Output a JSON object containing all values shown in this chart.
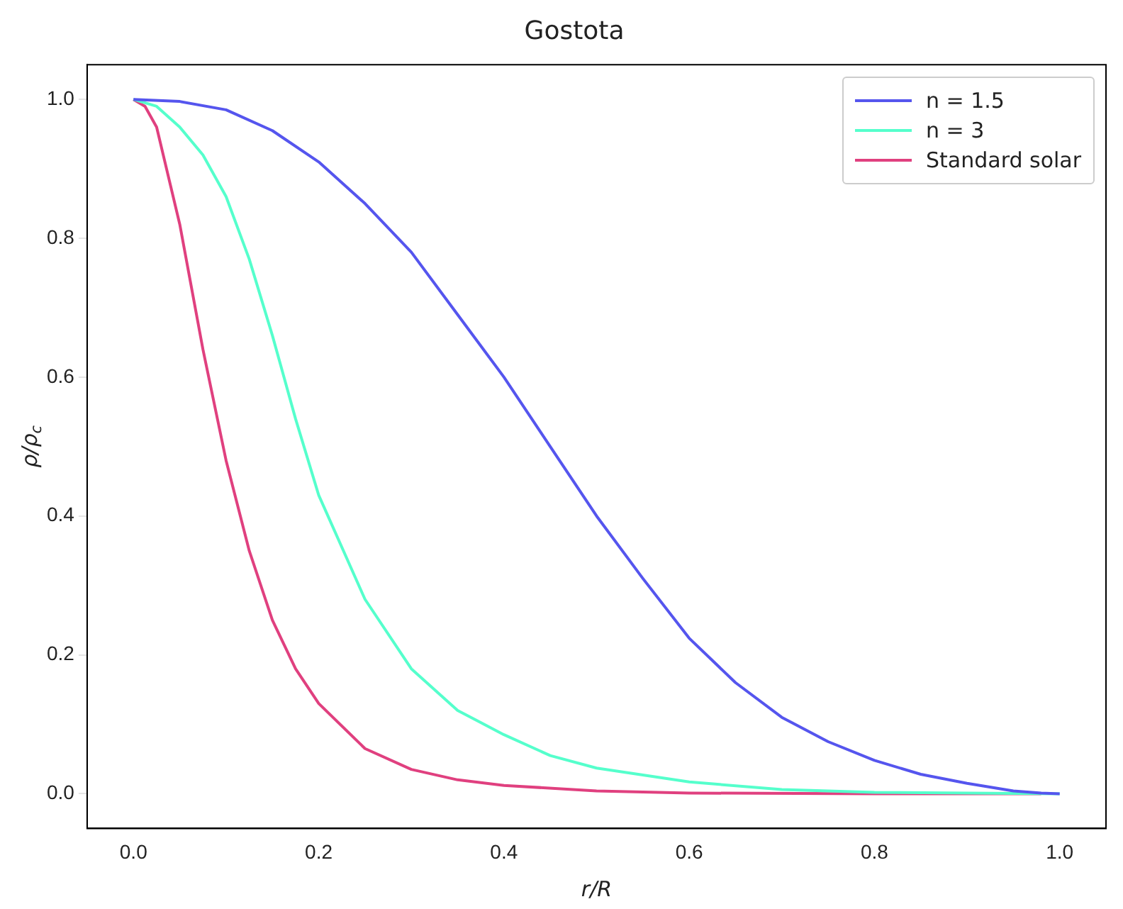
{
  "chart_data": {
    "type": "line",
    "title": "Gostota",
    "xlabel": "r/R",
    "ylabel": "ρ/ρ$_{c}$",
    "xlim": [
      -0.05,
      1.05
    ],
    "ylim": [
      -0.05,
      1.05
    ],
    "xticks": [
      {
        "value": 0,
        "label": "0.0"
      },
      0.2,
      0.4,
      0.6,
      0.8,
      {
        "value": 1,
        "label": "1.0"
      }
    ],
    "yticks": [
      {
        "value": 0,
        "label": "0.0"
      },
      0.2,
      0.4,
      0.6,
      0.8,
      {
        "value": 1,
        "label": "1.0"
      }
    ],
    "grid": false,
    "legend": "top right",
    "marker": "none",
    "line_style": "solid",
    "series": [
      {
        "name": "n = 1.5",
        "color": "#5555ee",
        "x": [
          0,
          0.05,
          0.1,
          0.15,
          0.2,
          0.25,
          0.3,
          0.35,
          0.4,
          0.45,
          0.5,
          0.55,
          0.6,
          0.65,
          0.7,
          0.75,
          0.8,
          0.85,
          0.9,
          0.95,
          0.98,
          1
        ],
        "values": [
          1,
          0.997,
          0.985,
          0.955,
          0.91,
          0.85,
          0.78,
          0.69,
          0.6,
          0.5,
          0.4,
          0.31,
          0.224,
          0.16,
          0.11,
          0.075,
          0.048,
          0.028,
          0.015,
          0.004,
          0.001,
          0
        ]
      },
      {
        "name": "n = 3",
        "color": "#55ffcc",
        "x": [
          0,
          0.025,
          0.05,
          0.075,
          0.1,
          0.125,
          0.15,
          0.175,
          0.2,
          0.25,
          0.3,
          0.35,
          0.4,
          0.45,
          0.5,
          0.6,
          0.7,
          0.8,
          0.9,
          1
        ],
        "values": [
          1,
          0.99,
          0.96,
          0.92,
          0.86,
          0.77,
          0.66,
          0.54,
          0.43,
          0.28,
          0.18,
          0.12,
          0.085,
          0.055,
          0.037,
          0.017,
          0.006,
          0.002,
          0.001,
          0
        ]
      },
      {
        "name": "Standard solar",
        "color": "#e0407f",
        "x": [
          0,
          0.0125,
          0.025,
          0.05,
          0.075,
          0.1,
          0.125,
          0.15,
          0.175,
          0.2,
          0.25,
          0.3,
          0.35,
          0.4,
          0.5,
          0.6,
          0.8,
          0.98
        ],
        "values": [
          1,
          0.99,
          0.96,
          0.82,
          0.64,
          0.48,
          0.35,
          0.25,
          0.18,
          0.13,
          0.065,
          0.035,
          0.02,
          0.012,
          0.004,
          0.001,
          0,
          0
        ]
      }
    ]
  }
}
